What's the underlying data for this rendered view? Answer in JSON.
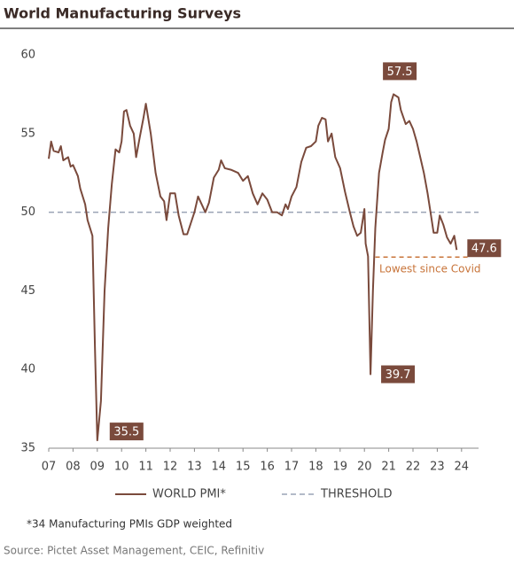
{
  "chart_data": {
    "type": "line",
    "title": "World Manufacturing Surveys",
    "footnote": "*34 Manufacturing PMIs GDP weighted",
    "source": "Source: Pictet Asset Management, CEIC, Refinitiv",
    "x": [
      2007.0,
      2007.1,
      2007.2,
      2007.4,
      2007.5,
      2007.6,
      2007.8,
      2007.9,
      2008.0,
      2008.2,
      2008.3,
      2008.5,
      2008.6,
      2008.8,
      2008.9,
      2009.0,
      2009.15,
      2009.3,
      2009.45,
      2009.6,
      2009.75,
      2009.9,
      2010.0,
      2010.1,
      2010.2,
      2010.35,
      2010.5,
      2010.6,
      2010.75,
      2010.9,
      2011.0,
      2011.2,
      2011.4,
      2011.6,
      2011.75,
      2011.85,
      2012.0,
      2012.2,
      2012.35,
      2012.55,
      2012.7,
      2012.85,
      2013.0,
      2013.15,
      2013.3,
      2013.45,
      2013.6,
      2013.8,
      2014.0,
      2014.1,
      2014.25,
      2014.5,
      2014.8,
      2015.0,
      2015.2,
      2015.4,
      2015.6,
      2015.8,
      2016.0,
      2016.2,
      2016.4,
      2016.6,
      2016.75,
      2016.85,
      2017.0,
      2017.2,
      2017.4,
      2017.6,
      2017.8,
      2018.0,
      2018.1,
      2018.25,
      2018.4,
      2018.5,
      2018.65,
      2018.8,
      2019.0,
      2019.2,
      2019.4,
      2019.55,
      2019.7,
      2019.85,
      2020.0,
      2020.05,
      2020.15,
      2020.25,
      2020.35,
      2020.45,
      2020.6,
      2020.75,
      2020.85,
      2021.0,
      2021.1,
      2021.2,
      2021.4,
      2021.5,
      2021.7,
      2021.85,
      2022.0,
      2022.15,
      2022.3,
      2022.45,
      2022.6,
      2022.75,
      2022.85,
      2023.0,
      2023.1,
      2023.25,
      2023.4,
      2023.55,
      2023.7,
      2023.8
    ],
    "series": [
      {
        "name": "WORLD PMI*",
        "color": "#7a4a3c",
        "values": [
          53.4,
          54.5,
          53.9,
          53.8,
          54.2,
          53.3,
          53.5,
          52.9,
          53.0,
          52.3,
          51.5,
          50.5,
          49.5,
          48.5,
          41.5,
          35.5,
          38,
          45,
          49,
          51.8,
          54,
          53.8,
          54.5,
          56.4,
          56.5,
          55.5,
          55.0,
          53.5,
          54.8,
          56,
          56.9,
          55,
          52.5,
          51,
          50.7,
          49.5,
          51.2,
          51.2,
          49.8,
          48.6,
          48.6,
          49.3,
          50.0,
          51.0,
          50.5,
          50.0,
          50.6,
          52.2,
          52.7,
          53.3,
          52.8,
          52.7,
          52.5,
          52.0,
          52.3,
          51.2,
          50.5,
          51.2,
          50.8,
          50.0,
          50.0,
          49.8,
          50.5,
          50.2,
          51.0,
          51.6,
          53.2,
          54.1,
          54.2,
          54.5,
          55.5,
          56,
          55.9,
          54.5,
          55.0,
          53.5,
          52.8,
          51.3,
          50.0,
          49.1,
          48.5,
          48.7,
          50.2,
          48.0,
          47.2,
          39.7,
          45,
          49,
          52.5,
          53.8,
          54.6,
          55.3,
          57.0,
          57.5,
          57.3,
          56.5,
          55.6,
          55.8,
          55.3,
          54.5,
          53.5,
          52.5,
          51.2,
          49.7,
          48.7,
          48.7,
          49.8,
          49.2,
          48.4,
          48.0,
          48.5,
          47.6
        ]
      }
    ],
    "threshold": {
      "name": "THRESHOLD",
      "value": 50,
      "color": "#9aa3b5"
    },
    "callouts": [
      {
        "value": 35.5,
        "label": "35.5"
      },
      {
        "value": 57.5,
        "label": "57.5"
      },
      {
        "value": 39.7,
        "label": "39.7"
      },
      {
        "value": 47.6,
        "label": "47.6"
      }
    ],
    "note": {
      "text": "Lowest since Covid",
      "color": "#c8743a"
    },
    "xlim": [
      2007,
      2024.7
    ],
    "xticks": [
      {
        "value": 2007,
        "label": "07"
      },
      {
        "value": 2008,
        "label": "08"
      },
      {
        "value": 2009,
        "label": "09"
      },
      {
        "value": 2010,
        "label": "10"
      },
      {
        "value": 2011,
        "label": "11"
      },
      {
        "value": 2012,
        "label": "12"
      },
      {
        "value": 2013,
        "label": "13"
      },
      {
        "value": 2014,
        "label": "14"
      },
      {
        "value": 2015,
        "label": "15"
      },
      {
        "value": 2016,
        "label": "16"
      },
      {
        "value": 2017,
        "label": "17"
      },
      {
        "value": 2018,
        "label": "18"
      },
      {
        "value": 2019,
        "label": "19"
      },
      {
        "value": 2020,
        "label": "20"
      },
      {
        "value": 2021,
        "label": "21"
      },
      {
        "value": 2022,
        "label": "22"
      },
      {
        "value": 2023,
        "label": "23"
      },
      {
        "value": 2024,
        "label": "24"
      }
    ],
    "ylim": [
      35,
      60
    ],
    "yticks": [
      35,
      40,
      45,
      50,
      55,
      60
    ],
    "grid": false
  }
}
